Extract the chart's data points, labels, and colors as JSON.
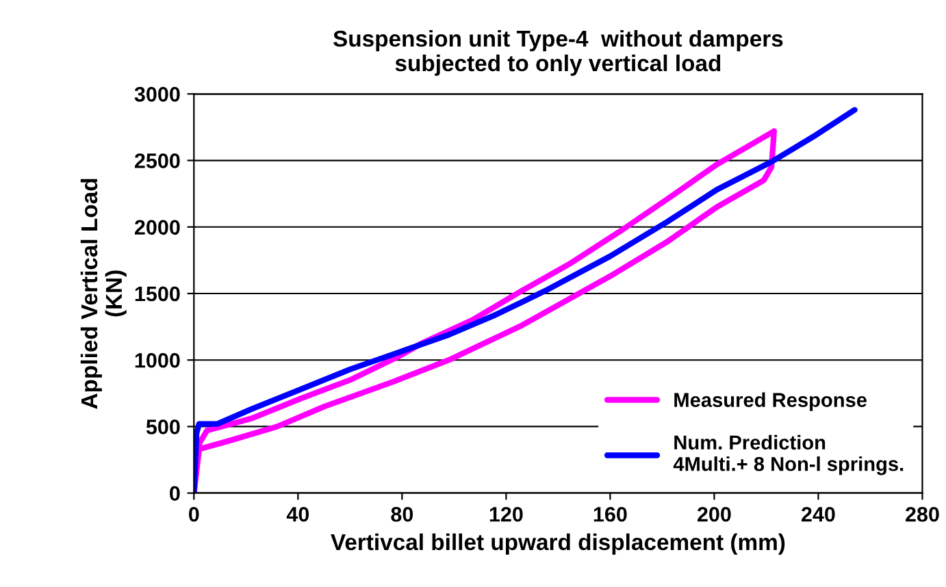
{
  "chart_data": {
    "type": "line",
    "title": "Suspension unit Type-4  without dampers\nsubjected to only vertical load",
    "xlabel": "Vertivcal billet upward displacement (mm)",
    "ylabel": "Applied Vertical Load\n(KN)",
    "series": [
      {
        "name": "Measured Response",
        "color": "#ff00ff",
        "x": [
          0,
          2,
          13,
          32,
          50,
          77,
          98,
          126,
          160,
          182,
          201,
          219,
          222,
          223
        ],
        "values": [
          0,
          330,
          390,
          500,
          650,
          840,
          1000,
          1260,
          1630,
          1890,
          2150,
          2350,
          2450,
          2720
        ]
      },
      {
        "color": "#ff00ff",
        "x": [
          0,
          2,
          5,
          22,
          41,
          60,
          78,
          88,
          107,
          126,
          145,
          164,
          182,
          201,
          223
        ],
        "values": [
          0,
          370,
          470,
          560,
          710,
          850,
          1020,
          1130,
          1300,
          1520,
          1730,
          1970,
          2210,
          2470,
          2720
        ]
      },
      {
        "name": "Num. Prediction\n4Multi.+ 8 Non-l springs.",
        "color": "#0000ff",
        "x": [
          0,
          1,
          2,
          9,
          22,
          41,
          60,
          79,
          98,
          116,
          135,
          160,
          182,
          201,
          222,
          239,
          254
        ],
        "values": [
          0,
          450,
          520,
          520,
          630,
          780,
          930,
          1060,
          1190,
          1340,
          1520,
          1780,
          2040,
          2280,
          2490,
          2690,
          2880
        ]
      }
    ],
    "xlim": [
      0,
      280
    ],
    "xticks": [
      0,
      40,
      80,
      120,
      160,
      200,
      240,
      280
    ],
    "ylim": [
      0,
      3000
    ],
    "yticks": [
      0,
      500,
      1000,
      1500,
      2000,
      2500,
      3000
    ],
    "grid": "y",
    "legend": "bottom right",
    "marker": "none",
    "line_style": "solid"
  }
}
